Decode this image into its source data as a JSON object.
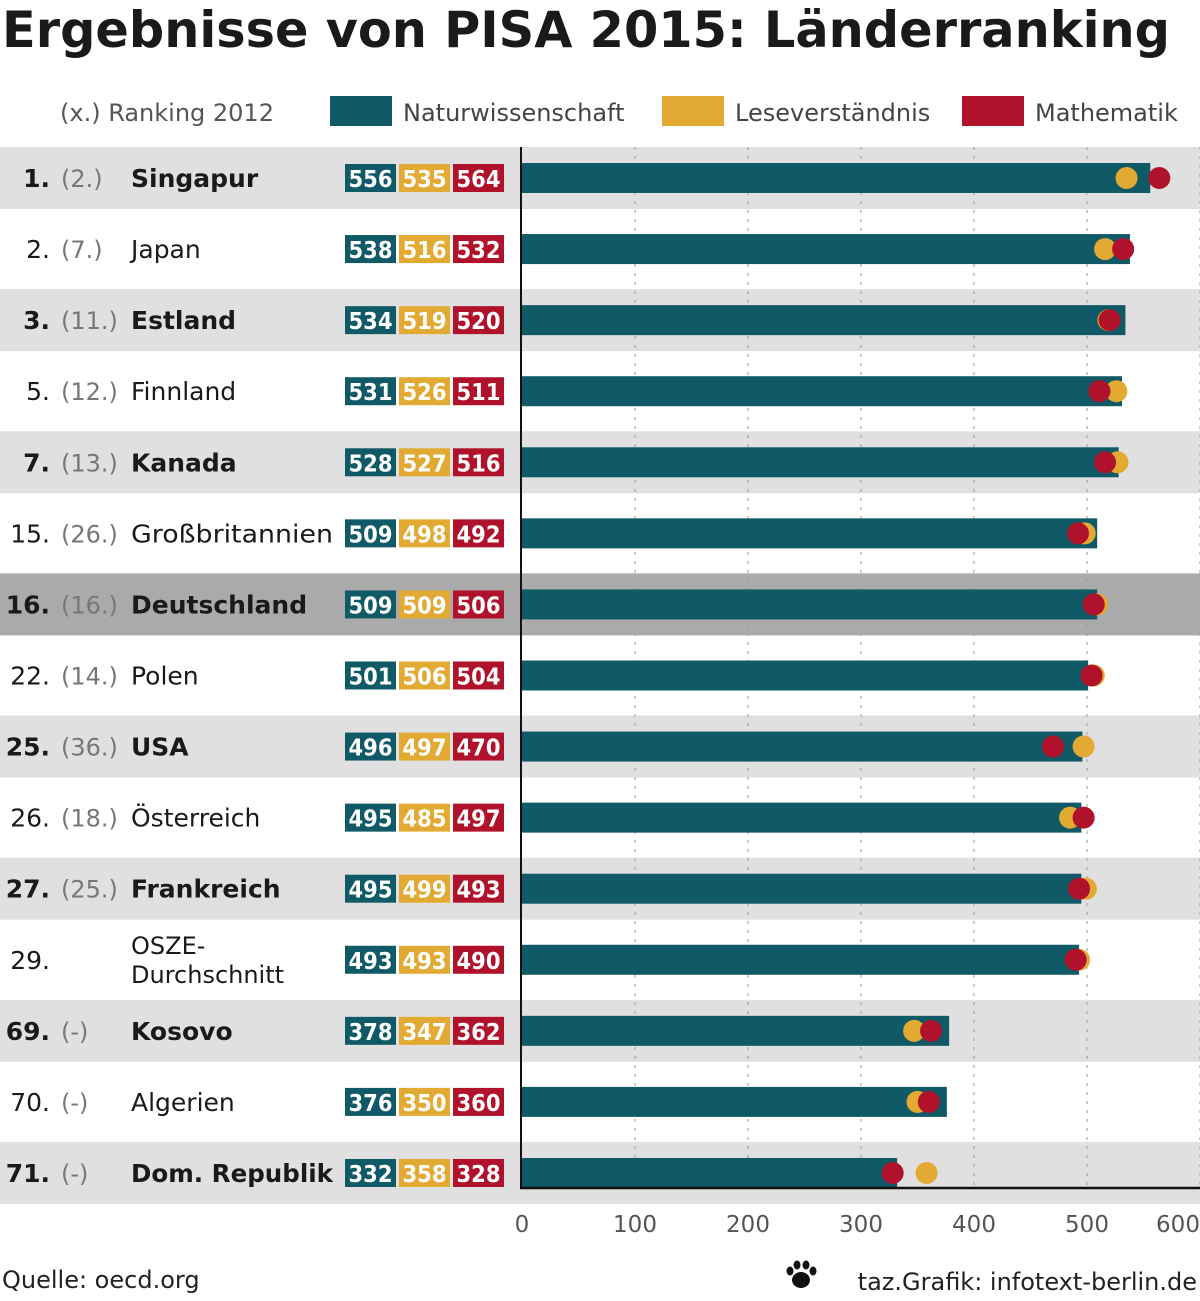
{
  "chart_data": {
    "type": "bar",
    "title": "Ergebnisse von PISA 2015: Länderranking",
    "legend": {
      "ranking_note": "(x.)  Ranking 2012",
      "series": [
        {
          "name": "Naturwissenschaft",
          "color": "#0f5a66"
        },
        {
          "name": "Leseverständnis",
          "color": "#e2aa33"
        },
        {
          "name": "Mathematik",
          "color": "#b0122b"
        }
      ],
      "placement": "top"
    },
    "xlim": [
      0,
      600
    ],
    "xticks": [
      "0",
      "100",
      "200",
      "300",
      "400",
      "500",
      "600"
    ],
    "grid": true,
    "rows": [
      {
        "rank": "1.",
        "prev": "(2.)",
        "country": "Singapur",
        "bold": true,
        "highlight": false,
        "values": [
          556,
          535,
          564
        ]
      },
      {
        "rank": "2.",
        "prev": "(7.)",
        "country": "Japan",
        "bold": false,
        "highlight": false,
        "values": [
          538,
          516,
          532
        ]
      },
      {
        "rank": "3.",
        "prev": "(11.)",
        "country": "Estland",
        "bold": true,
        "highlight": false,
        "values": [
          534,
          519,
          520
        ]
      },
      {
        "rank": "5.",
        "prev": "(12.)",
        "country": "Finnland",
        "bold": false,
        "highlight": false,
        "values": [
          531,
          526,
          511
        ]
      },
      {
        "rank": "7.",
        "prev": "(13.)",
        "country": "Kanada",
        "bold": true,
        "highlight": false,
        "values": [
          528,
          527,
          516
        ]
      },
      {
        "rank": "15.",
        "prev": "(26.)",
        "country": "Großbritannien",
        "bold": false,
        "highlight": false,
        "values": [
          509,
          498,
          492
        ]
      },
      {
        "rank": "16.",
        "prev": "(16.)",
        "country": "Deutschland",
        "bold": true,
        "highlight": true,
        "values": [
          509,
          509,
          506
        ]
      },
      {
        "rank": "22.",
        "prev": "(14.)",
        "country": "Polen",
        "bold": false,
        "highlight": false,
        "values": [
          501,
          506,
          504
        ]
      },
      {
        "rank": "25.",
        "prev": "(36.)",
        "country": "USA",
        "bold": true,
        "highlight": false,
        "values": [
          496,
          497,
          470
        ]
      },
      {
        "rank": "26.",
        "prev": "(18.)",
        "country": "Österreich",
        "bold": false,
        "highlight": false,
        "values": [
          495,
          485,
          497
        ]
      },
      {
        "rank": "27.",
        "prev": "(25.)",
        "country": "Frankreich",
        "bold": true,
        "highlight": false,
        "values": [
          495,
          499,
          493
        ]
      },
      {
        "rank": "29.",
        "prev": "",
        "country": "OSZE-|Durchschnitt",
        "bold": false,
        "highlight": false,
        "values": [
          493,
          493,
          490
        ]
      },
      {
        "rank": "69.",
        "prev": "(-)",
        "country": "Kosovo",
        "bold": true,
        "highlight": false,
        "values": [
          378,
          347,
          362
        ]
      },
      {
        "rank": "70.",
        "prev": "(-)",
        "country": "Algerien",
        "bold": false,
        "highlight": false,
        "values": [
          376,
          350,
          360
        ]
      },
      {
        "rank": "71.",
        "prev": "(-)",
        "country": "Dom. Republik",
        "bold": true,
        "highlight": false,
        "values": [
          332,
          358,
          328
        ]
      }
    ]
  },
  "footer": {
    "source": "Quelle: oecd.org",
    "credit": "taz.Grafik: infotext-berlin.de",
    "credit_icon": "paw-icon"
  }
}
